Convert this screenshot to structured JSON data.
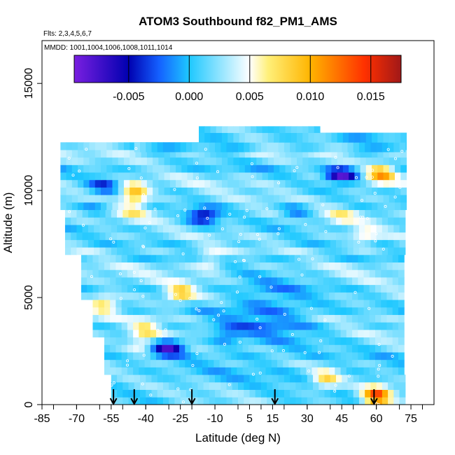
{
  "chart_data": {
    "type": "heatmap",
    "title": "ATOM3 Southbound f82_PM1_AMS",
    "flights_note": "Flts: 2,3,4,5,6,7",
    "dates_note": "MMDD: 1001,1004,1006,1008,1011,1014",
    "xlabel": "Latitude (deg N)",
    "ylabel": "Altitude (m)",
    "xlim": [
      -85,
      85
    ],
    "ylim": [
      0,
      17000
    ],
    "x_tick_labels": [
      "-85",
      "-70",
      "-55",
      "-40",
      "-25",
      "-10",
      "5",
      "15",
      "30",
      "45",
      "60",
      "75"
    ],
    "y_tick_labels": [
      "0",
      "5000",
      "10000",
      "15000"
    ],
    "colorbar": {
      "range": [
        -0.0095,
        0.0175
      ],
      "tick_labels": [
        "-0.005",
        "0.000",
        "0.005",
        "0.010",
        "0.015"
      ],
      "colors": [
        "#7a1fe0",
        "#0000b0",
        "#1460ff",
        "#1ec8ff",
        "#ffffff",
        "#fff07a",
        "#ffb400",
        "#ff3000",
        "#a01818"
      ]
    },
    "profile_latitudes": [
      -54,
      -45,
      -20,
      16,
      59
    ],
    "grid": false,
    "legend": "colorbar-top"
  }
}
